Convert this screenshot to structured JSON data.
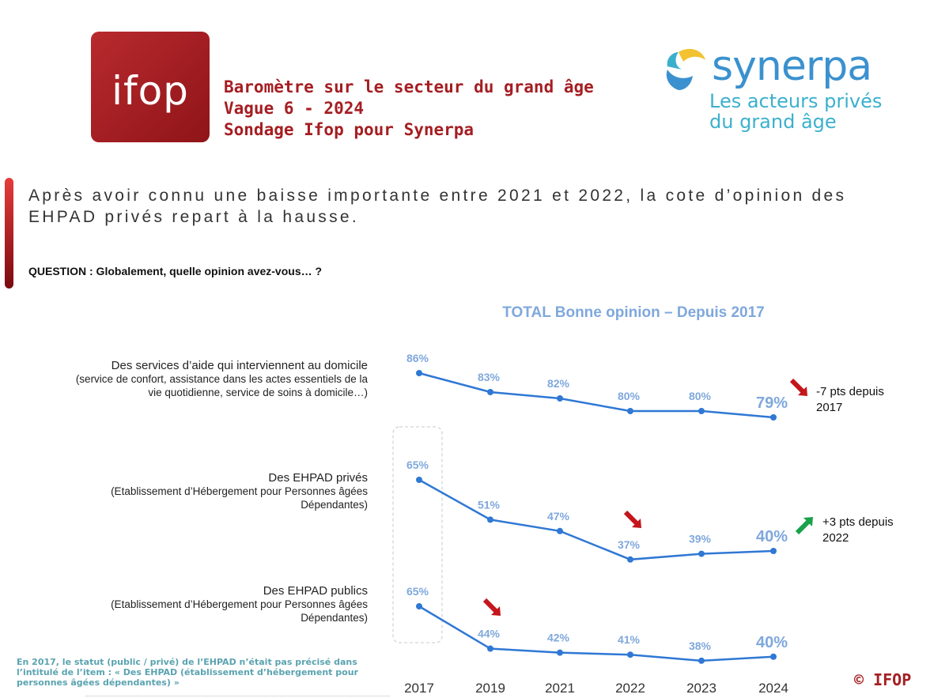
{
  "header": {
    "logo_text": "ifop",
    "line1": "Baromètre sur le secteur du grand âge",
    "line2": "Vague 6 - 2024",
    "line3": "Sondage Ifop pour Synerpa"
  },
  "synerpa": {
    "name": "synerpa",
    "tagline1": "Les acteurs privés",
    "tagline2": "du grand âge"
  },
  "headline": {
    "line1": "Après avoir connu une baisse importante entre 2021 et 2022, la cote d’opinion des",
    "line2": "EHPAD privés repart à la hausse."
  },
  "question": "QUESTION : Globalement, quelle opinion avez-vous… ?",
  "items": [
    {
      "main": "Des services d’aide qui interviennent au domicile",
      "sub1": "(service de confort, assistance dans les actes essentiels de la",
      "sub2": "vie quotidienne, service de soins à domicile…)"
    },
    {
      "main": "Des EHPAD privés",
      "sub1": "(Etablissement d’Hébergement pour Personnes âgées",
      "sub2": "Dépendantes)"
    },
    {
      "main": "Des EHPAD publics",
      "sub1": "(Etablissement d’Hébergement pour Personnes âgées",
      "sub2": "Dépendantes)"
    }
  ],
  "changes": {
    "domicile": {
      "line1": "-7 pts depuis",
      "line2": "2017"
    },
    "prives": {
      "line1": "+3 pts depuis",
      "line2": "2022"
    }
  },
  "footnote": {
    "line1": "En 2017, le statut (public / privé) de l’EHPAD n’était pas précisé dans",
    "line2": "l’intitulé de l’item : « Des EHPAD (établissement d’hébergement pour",
    "line3": "personnes âgées dépendantes) »"
  },
  "copyright": "© IFOP",
  "colors": {
    "brand_red": "#a51e22",
    "series_blue": "#2f78d4",
    "label_blue": "#7fa8dc",
    "arrow_down": "#c4161c",
    "arrow_up": "#1aa14a"
  },
  "chart_data": {
    "type": "line",
    "title": "TOTAL Bonne opinion – Depuis 2017",
    "categories": [
      "2017",
      "2019",
      "2021",
      "2022",
      "2023",
      "2024"
    ],
    "series": [
      {
        "values": [
          86,
          83,
          82,
          80,
          80,
          79
        ],
        "labels": [
          "86%",
          "83%",
          "82%",
          "80%",
          "80%",
          "79%"
        ]
      },
      {
        "values": [
          65,
          51,
          47,
          37,
          39,
          40
        ],
        "labels": [
          "65%",
          "51%",
          "47%",
          "37%",
          "39%",
          "40%"
        ]
      },
      {
        "values": [
          65,
          44,
          42,
          41,
          38,
          40
        ],
        "labels": [
          "65%",
          "44%",
          "42%",
          "41%",
          "38%",
          "40%"
        ]
      }
    ],
    "annotations": [
      {
        "series": 0,
        "trend": "down"
      },
      {
        "series": 1,
        "at": "2022",
        "trend": "down"
      },
      {
        "series": 1,
        "trend": "up"
      },
      {
        "series": 2,
        "at": "2019",
        "trend": "down"
      }
    ],
    "grid": false,
    "legend": "none"
  }
}
